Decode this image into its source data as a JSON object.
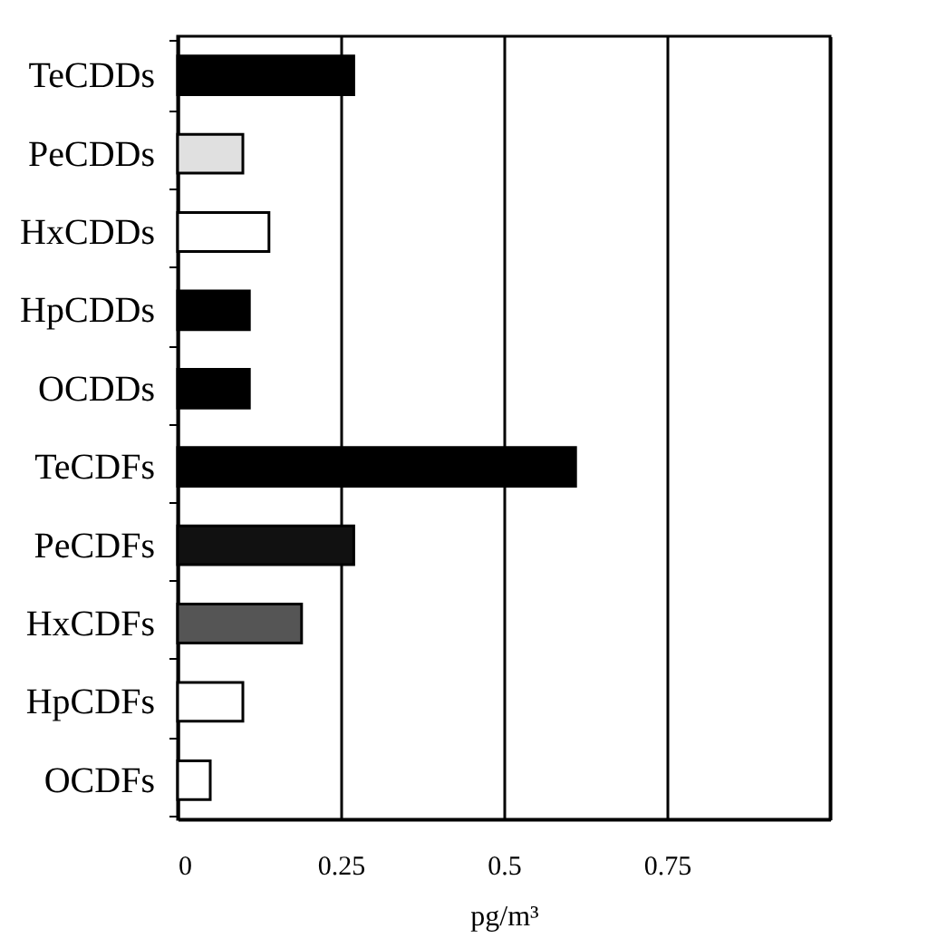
{
  "chart_data": {
    "type": "bar",
    "orientation": "horizontal",
    "xlabel": "pg/m³",
    "categories": [
      "TeCDDs",
      "PeCDDs",
      "HxCDDs",
      "HpCDDs",
      "OCDDs",
      "TeCDFs",
      "PeCDFs",
      "HxCDFs",
      "HpCDFs",
      "OCDFs"
    ],
    "values": [
      0.27,
      0.1,
      0.14,
      0.11,
      0.11,
      0.61,
      0.27,
      0.19,
      0.1,
      0.05
    ],
    "colors": [
      "#000000",
      "#e0e0e0",
      "#ffffff",
      "#000000",
      "#000000",
      "#000000",
      "#111111",
      "#555555",
      "#ffffff",
      "#ffffff"
    ],
    "xlim": [
      0,
      1
    ],
    "xticks": [
      0,
      0.25,
      0.5,
      0.75,
      {
        "value": 1,
        "label": null
      }
    ],
    "grid": "x"
  }
}
